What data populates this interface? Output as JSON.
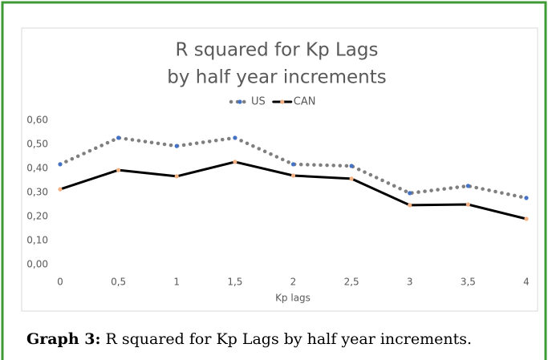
{
  "chart_data": {
    "type": "line",
    "title": [
      "R squared for Kp Lags",
      "by half year increments"
    ],
    "x_label": "Kp lags",
    "categories": [
      "0",
      "0,5",
      "1",
      "1,5",
      "2",
      "2,5",
      "3",
      "3,5",
      "4"
    ],
    "series": [
      {
        "name": "US",
        "color": "#7f7f7f",
        "marker_color": "#4472c4",
        "line_style": "dotted",
        "values": [
          0.417,
          0.527,
          0.493,
          0.527,
          0.417,
          0.41,
          0.297,
          0.327,
          0.277
        ]
      },
      {
        "name": "CAN",
        "color": "#000000",
        "marker_color": "#f4b183",
        "line_style": "solid",
        "values": [
          0.313,
          0.393,
          0.367,
          0.427,
          0.37,
          0.357,
          0.247,
          0.25,
          0.19
        ]
      }
    ],
    "ylim": [
      0,
      0.6
    ],
    "yticks": [
      {
        "value": 0,
        "label": "0,00"
      },
      {
        "value": 0.1,
        "label": "0,10"
      },
      {
        "value": 0.2,
        "label": "0,20"
      },
      {
        "value": 0.3,
        "label": "0,30"
      },
      {
        "value": 0.4,
        "label": "0,40"
      },
      {
        "value": 0.5,
        "label": "0,50"
      },
      {
        "value": 0.6,
        "label": "0,60"
      }
    ],
    "legend": "top",
    "grid": false
  },
  "caption": {
    "label": "Graph 3:",
    "text": "R squared for Kp Lags by half year increments."
  }
}
